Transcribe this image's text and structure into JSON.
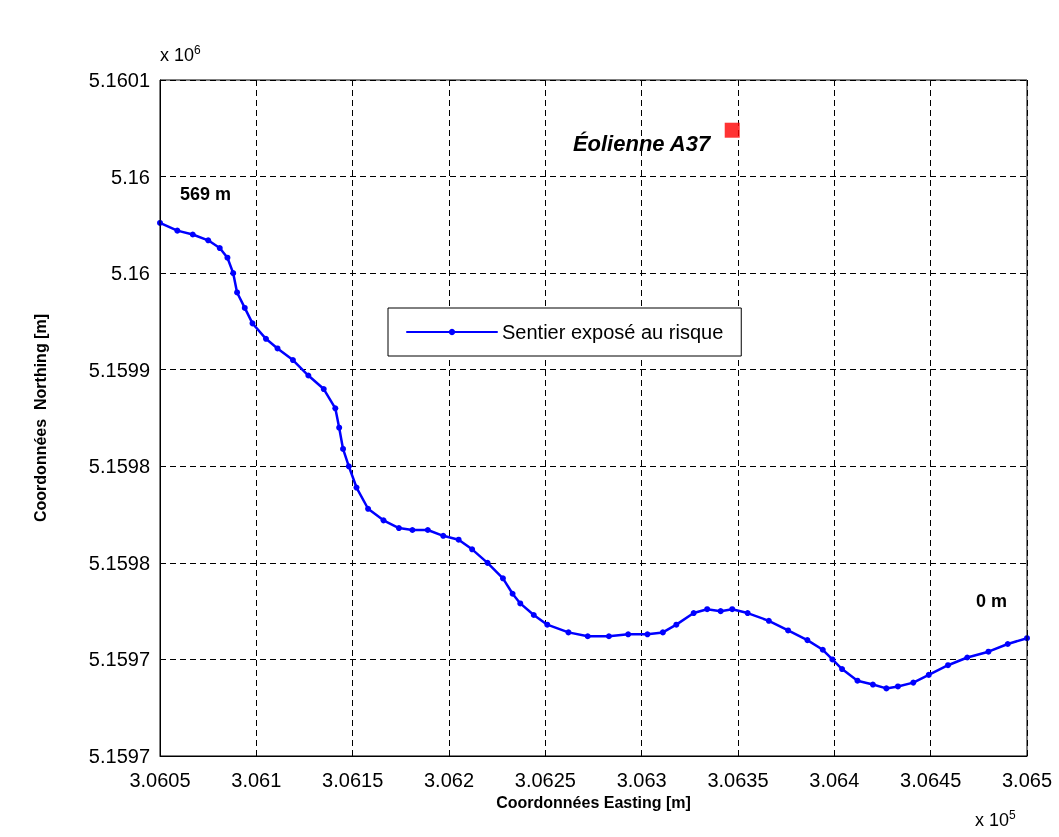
{
  "chart_data": {
    "type": "line",
    "xlabel": "Coordonnées Easting [m]",
    "ylabel": "Coordonnées  Northing [m]",
    "xlim": [
      3.0605,
      3.065
    ],
    "xticks": [
      3.0605,
      3.061,
      3.0615,
      3.062,
      3.0625,
      3.063,
      3.0635,
      3.064,
      3.0645,
      3.065
    ],
    "ylim": [
      5.1597,
      5.16005
    ],
    "yticks": [
      {
        "value": 5.1597,
        "label": "5.1597"
      },
      {
        "value": 5.15975,
        "label": "5.1597"
      },
      {
        "value": 5.1598,
        "label": "5.1598"
      },
      {
        "value": 5.15985,
        "label": "5.1598"
      },
      {
        "value": 5.1599,
        "label": "5.1599"
      },
      {
        "value": 5.15995,
        "label": "5.16"
      },
      {
        "value": 5.16,
        "label": "5.16"
      },
      {
        "value": 5.16005,
        "label": "5.1601"
      }
    ],
    "grid": true,
    "legend": "top",
    "marker": "circle",
    "line_style": "solid",
    "series": [
      {
        "name": "Sentier exposé au risque",
        "color": "#0000ff",
        "x": [
          3.0605,
          3.06059,
          3.06067,
          3.06075,
          3.06081,
          3.06085,
          3.06088,
          3.0609,
          3.06094,
          3.06098,
          3.06105,
          3.06111,
          3.06119,
          3.06127,
          3.06135,
          3.06141,
          3.06143,
          3.06145,
          3.06148,
          3.06152,
          3.06158,
          3.06166,
          3.06174,
          3.06181,
          3.06189,
          3.06197,
          3.06205,
          3.06212,
          3.0622,
          3.06228,
          3.06233,
          3.06237,
          3.06244,
          3.06251,
          3.06262,
          3.06272,
          3.06283,
          3.06293,
          3.06303,
          3.06311,
          3.06318,
          3.06327,
          3.06334,
          3.06341,
          3.06347,
          3.06355,
          3.06366,
          3.06376,
          3.06386,
          3.06394,
          3.06399,
          3.06404,
          3.06412,
          3.0642,
          3.06427,
          3.06433,
          3.06441,
          3.06449,
          3.06459,
          3.06469,
          3.0648,
          3.0649,
          3.065
        ],
        "values": [
          5.159976,
          5.159972,
          5.15997,
          5.159967,
          5.159963,
          5.159958,
          5.15995,
          5.15994,
          5.159932,
          5.159924,
          5.159916,
          5.159911,
          5.159905,
          5.159897,
          5.15989,
          5.15988,
          5.15987,
          5.159859,
          5.15985,
          5.159839,
          5.159828,
          5.159822,
          5.159818,
          5.159817,
          5.159817,
          5.159814,
          5.159812,
          5.159807,
          5.1598,
          5.159792,
          5.159784,
          5.159779,
          5.159773,
          5.159768,
          5.159764,
          5.159762,
          5.159762,
          5.159763,
          5.159763,
          5.159764,
          5.159768,
          5.159774,
          5.159776,
          5.159775,
          5.159776,
          5.159774,
          5.15977,
          5.159765,
          5.15976,
          5.159755,
          5.15975,
          5.159745,
          5.159739,
          5.159737,
          5.159735,
          5.159736,
          5.159738,
          5.159742,
          5.159747,
          5.159751,
          5.159754,
          5.159758,
          5.159761
        ]
      },
      {
        "type": "scatter",
        "color": "#ff0000",
        "marker": "square",
        "x": [
          3.06347
        ],
        "values": [
          5.160024
        ]
      }
    ],
    "annotations": [
      "x 10$^{6}$",
      "x 10$^{5}$",
      {
        "text": "Éolienne A37",
        "x": 3.06347,
        "y": 5.160024
      },
      {
        "text": "569 m",
        "x": 3.0605,
        "y": 5.159976
      },
      {
        "text": "0 m",
        "x": 3.065,
        "y": 5.159761
      }
    ]
  }
}
